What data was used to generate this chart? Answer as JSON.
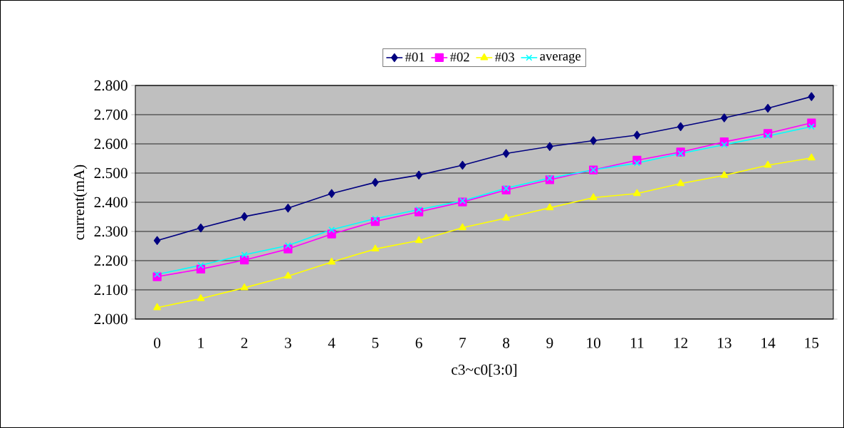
{
  "chart_data": {
    "type": "line",
    "xlabel": "c3~c0[3:0]",
    "ylabel": "current(mA)",
    "categories": [
      "0",
      "1",
      "2",
      "3",
      "4",
      "5",
      "6",
      "7",
      "8",
      "9",
      "10",
      "11",
      "12",
      "13",
      "14",
      "15"
    ],
    "series": [
      {
        "name": "#01",
        "color": "#000080",
        "marker": "diamond",
        "values": [
          2.269,
          2.312,
          2.351,
          2.38,
          2.43,
          2.468,
          2.493,
          2.527,
          2.567,
          2.591,
          2.611,
          2.63,
          2.659,
          2.689,
          2.722,
          2.762
        ]
      },
      {
        "name": "#02",
        "color": "#ff00ff",
        "marker": "square",
        "values": [
          2.145,
          2.171,
          2.202,
          2.24,
          2.291,
          2.334,
          2.367,
          2.401,
          2.442,
          2.477,
          2.511,
          2.544,
          2.572,
          2.607,
          2.636,
          2.672
        ]
      },
      {
        "name": "#03",
        "color": "#ffff00",
        "marker": "triangle",
        "values": [
          2.039,
          2.07,
          2.107,
          2.147,
          2.195,
          2.24,
          2.269,
          2.313,
          2.346,
          2.381,
          2.416,
          2.43,
          2.464,
          2.492,
          2.527,
          2.552
        ]
      },
      {
        "name": "average",
        "color": "#00ffff",
        "marker": "cross",
        "values": [
          2.153,
          2.184,
          2.22,
          2.252,
          2.306,
          2.344,
          2.375,
          2.405,
          2.448,
          2.483,
          2.511,
          2.534,
          2.567,
          2.597,
          2.627,
          2.659
        ]
      }
    ],
    "ylim": [
      2.0,
      2.8
    ],
    "yticks": [
      {
        "value": 2.0,
        "label": "2.000"
      },
      {
        "value": 2.1,
        "label": "2.100"
      },
      {
        "value": 2.2,
        "label": "2.200"
      },
      {
        "value": 2.3,
        "label": "2.300"
      },
      {
        "value": 2.4,
        "label": "2.400"
      },
      {
        "value": 2.5,
        "label": "2.500"
      },
      {
        "value": 2.6,
        "label": "2.600"
      },
      {
        "value": 2.7,
        "label": "2.700"
      },
      {
        "value": 2.8,
        "label": "2.800"
      }
    ],
    "grid": "y",
    "legend": "top",
    "line_style": "solid"
  }
}
